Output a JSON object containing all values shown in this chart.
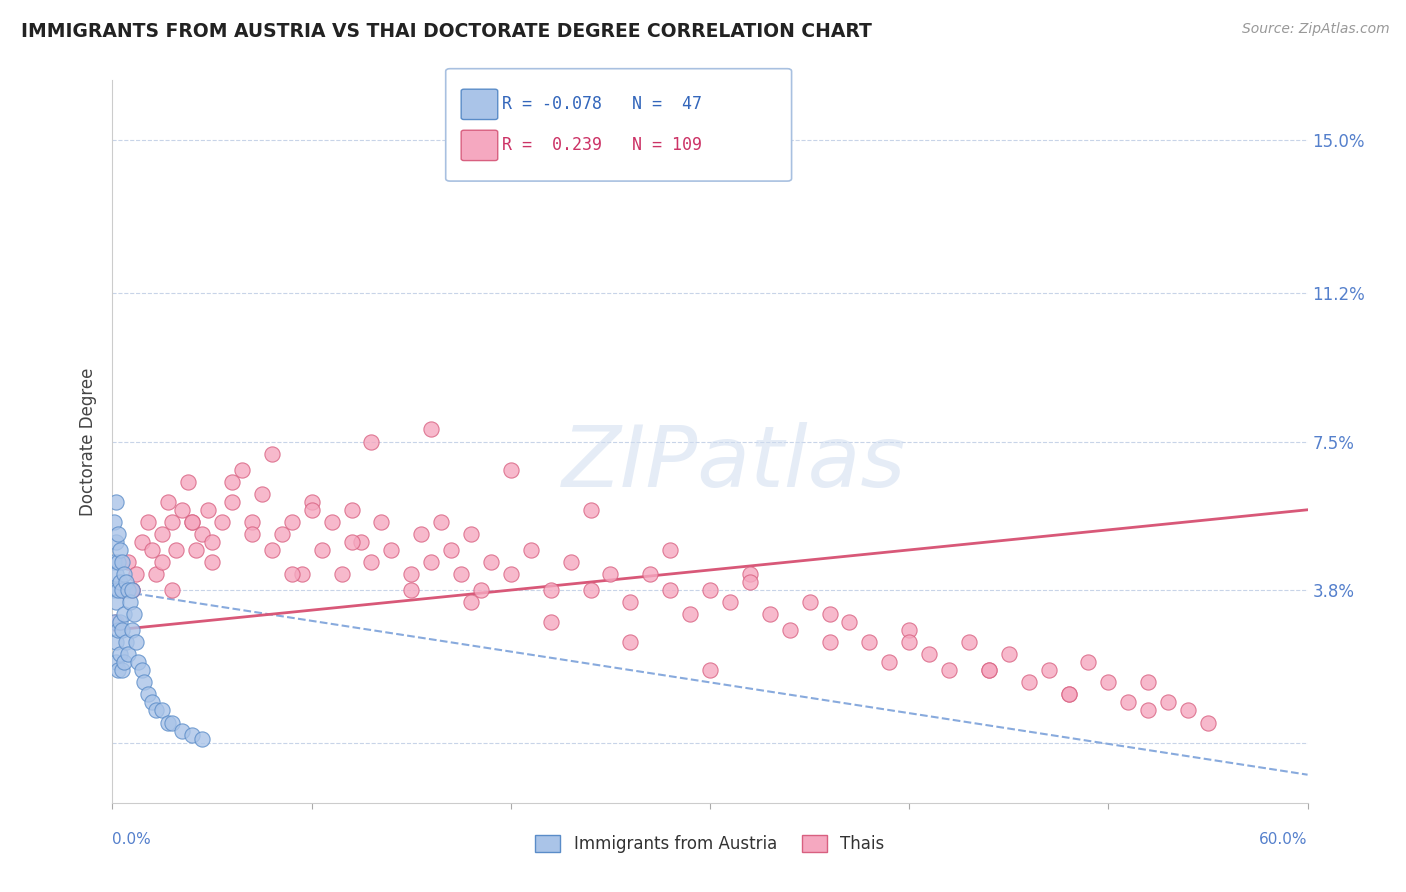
{
  "title": "IMMIGRANTS FROM AUSTRIA VS THAI DOCTORATE DEGREE CORRELATION CHART",
  "source": "Source: ZipAtlas.com",
  "ylabel": "Doctorate Degree",
  "ytick_positions": [
    0.0,
    0.038,
    0.075,
    0.112,
    0.15
  ],
  "ytick_labels": [
    "",
    "3.8%",
    "7.5%",
    "11.2%",
    "15.0%"
  ],
  "xmin": 0.0,
  "xmax": 0.6,
  "ymin": -0.015,
  "ymax": 0.165,
  "austria_R": -0.078,
  "austria_N": 47,
  "thai_R": 0.239,
  "thai_N": 109,
  "austria_color": "#aac4e8",
  "austria_edge": "#5a8cc8",
  "thai_color": "#f5a8c0",
  "thai_edge": "#d86080",
  "austria_trend_color": "#88aadd",
  "thai_trend_color": "#d85878",
  "legend_austria": "Immigrants from Austria",
  "legend_thai": "Thais",
  "background_color": "#ffffff",
  "grid_color": "#c8d4e8",
  "austria_x": [
    0.001,
    0.001,
    0.001,
    0.001,
    0.002,
    0.002,
    0.002,
    0.002,
    0.002,
    0.002,
    0.003,
    0.003,
    0.003,
    0.003,
    0.003,
    0.004,
    0.004,
    0.004,
    0.004,
    0.005,
    0.005,
    0.005,
    0.005,
    0.006,
    0.006,
    0.006,
    0.007,
    0.007,
    0.008,
    0.008,
    0.009,
    0.01,
    0.01,
    0.011,
    0.012,
    0.013,
    0.015,
    0.016,
    0.018,
    0.02,
    0.022,
    0.025,
    0.028,
    0.03,
    0.035,
    0.04,
    0.045
  ],
  "austria_y": [
    0.055,
    0.045,
    0.038,
    0.03,
    0.06,
    0.05,
    0.042,
    0.035,
    0.025,
    0.02,
    0.052,
    0.045,
    0.038,
    0.028,
    0.018,
    0.048,
    0.04,
    0.03,
    0.022,
    0.045,
    0.038,
    0.028,
    0.018,
    0.042,
    0.032,
    0.02,
    0.04,
    0.025,
    0.038,
    0.022,
    0.035,
    0.038,
    0.028,
    0.032,
    0.025,
    0.02,
    0.018,
    0.015,
    0.012,
    0.01,
    0.008,
    0.008,
    0.005,
    0.005,
    0.003,
    0.002,
    0.001
  ],
  "thai_x": [
    0.002,
    0.005,
    0.008,
    0.01,
    0.012,
    0.015,
    0.018,
    0.02,
    0.022,
    0.025,
    0.028,
    0.03,
    0.032,
    0.035,
    0.038,
    0.04,
    0.042,
    0.045,
    0.048,
    0.05,
    0.055,
    0.06,
    0.065,
    0.07,
    0.075,
    0.08,
    0.085,
    0.09,
    0.095,
    0.1,
    0.105,
    0.11,
    0.115,
    0.12,
    0.125,
    0.13,
    0.135,
    0.14,
    0.15,
    0.155,
    0.16,
    0.165,
    0.17,
    0.175,
    0.18,
    0.185,
    0.19,
    0.2,
    0.21,
    0.22,
    0.23,
    0.24,
    0.25,
    0.26,
    0.27,
    0.28,
    0.29,
    0.3,
    0.31,
    0.32,
    0.33,
    0.34,
    0.35,
    0.36,
    0.37,
    0.38,
    0.39,
    0.4,
    0.41,
    0.42,
    0.43,
    0.44,
    0.45,
    0.46,
    0.47,
    0.48,
    0.49,
    0.5,
    0.51,
    0.52,
    0.53,
    0.54,
    0.55,
    0.01,
    0.025,
    0.04,
    0.06,
    0.08,
    0.1,
    0.13,
    0.16,
    0.2,
    0.24,
    0.28,
    0.32,
    0.36,
    0.4,
    0.44,
    0.48,
    0.52,
    0.03,
    0.05,
    0.07,
    0.09,
    0.12,
    0.15,
    0.18,
    0.22,
    0.26,
    0.3
  ],
  "thai_y": [
    0.03,
    0.038,
    0.045,
    0.038,
    0.042,
    0.05,
    0.055,
    0.048,
    0.042,
    0.052,
    0.06,
    0.055,
    0.048,
    0.058,
    0.065,
    0.055,
    0.048,
    0.052,
    0.058,
    0.05,
    0.055,
    0.06,
    0.068,
    0.055,
    0.062,
    0.048,
    0.052,
    0.055,
    0.042,
    0.06,
    0.048,
    0.055,
    0.042,
    0.058,
    0.05,
    0.045,
    0.055,
    0.048,
    0.042,
    0.052,
    0.045,
    0.055,
    0.048,
    0.042,
    0.052,
    0.038,
    0.045,
    0.042,
    0.048,
    0.038,
    0.045,
    0.038,
    0.042,
    0.035,
    0.042,
    0.038,
    0.032,
    0.038,
    0.035,
    0.042,
    0.032,
    0.028,
    0.035,
    0.025,
    0.03,
    0.025,
    0.02,
    0.028,
    0.022,
    0.018,
    0.025,
    0.018,
    0.022,
    0.015,
    0.018,
    0.012,
    0.02,
    0.015,
    0.01,
    0.015,
    0.01,
    0.008,
    0.005,
    0.038,
    0.045,
    0.055,
    0.065,
    0.072,
    0.058,
    0.075,
    0.078,
    0.068,
    0.058,
    0.048,
    0.04,
    0.032,
    0.025,
    0.018,
    0.012,
    0.008,
    0.038,
    0.045,
    0.052,
    0.042,
    0.05,
    0.038,
    0.035,
    0.03,
    0.025,
    0.018
  ]
}
